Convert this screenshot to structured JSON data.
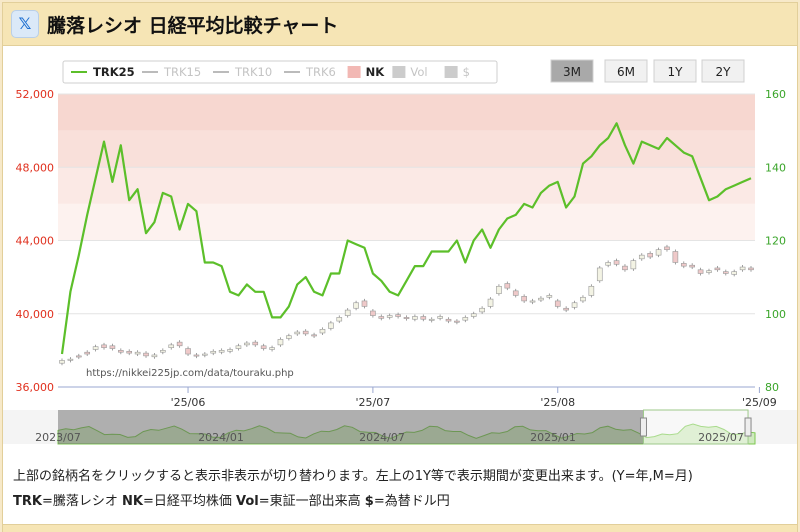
{
  "header": {
    "logo_glyph": "𝕏",
    "title": "騰落レシオ 日経平均比較チャート"
  },
  "range_buttons": [
    {
      "label": "3M",
      "active": true
    },
    {
      "label": "6M",
      "active": false
    },
    {
      "label": "1Y",
      "active": false
    },
    {
      "label": "2Y",
      "active": false
    }
  ],
  "legend": [
    {
      "label": "TRK25",
      "type": "line",
      "color": "#5cbf2a",
      "active": true
    },
    {
      "label": "TRK15",
      "type": "line",
      "color": "#bbbbbb",
      "active": false
    },
    {
      "label": "TRK10",
      "type": "line",
      "color": "#bbbbbb",
      "active": false
    },
    {
      "label": "TRK6",
      "type": "line",
      "color": "#bbbbbb",
      "active": false
    },
    {
      "label": "NK",
      "type": "box",
      "color": "#f2b8b4",
      "active": true
    },
    {
      "label": "Vol",
      "type": "box",
      "color": "#cccccc",
      "active": false
    },
    {
      "label": "$",
      "type": "box",
      "color": "#cccccc",
      "active": false
    }
  ],
  "watermark": "https://nikkei225jp.com/data/touraku.php",
  "description": "上部の銘柄名をクリックすると表示非表示が切り替わります。左上の1Y等で表示期間が変更出来ます。(Y=年,M=月)",
  "legend_text": [
    {
      "key": "TRK",
      "desc": "=騰落レシオ "
    },
    {
      "key": "NK",
      "desc": "=日経平均株価 "
    },
    {
      "key": "Vol",
      "desc": "=東証一部出来高 "
    },
    {
      "key": "$",
      "desc": "=為替ドル円"
    }
  ],
  "colors": {
    "trk": "#5cbf2a",
    "left_axis": "#e0301e",
    "right_axis": "#3aa52a",
    "bull": "#f3f3e4",
    "bear": "#efc9c9",
    "nav": "#cfe9bf"
  },
  "chart_data": {
    "type": "line",
    "left_axis": {
      "ticks": [
        "52,000",
        "48,000",
        "44,000",
        "40,000",
        "36,000"
      ],
      "ylim": [
        36000,
        52000
      ]
    },
    "right_axis": {
      "ticks": [
        "160",
        "140",
        "120",
        "100",
        "80"
      ],
      "ylim": [
        80,
        160
      ]
    },
    "bands": [
      {
        "from": 150,
        "to": 160,
        "color": "#f7d7d0"
      },
      {
        "from": 140,
        "to": 150,
        "color": "#f9e0da"
      },
      {
        "from": 130,
        "to": 140,
        "color": "#fbe9e5"
      },
      {
        "from": 120,
        "to": 130,
        "color": "#fdf2ef"
      }
    ],
    "x_ticks": [
      "'25/06",
      "'25/07",
      "'25/08",
      "'25/09"
    ],
    "x_tick_index": [
      15,
      37,
      59,
      83
    ],
    "navigator_labels": [
      "2023/07",
      "2024/01",
      "2024/07",
      "2025/01",
      "2025/07"
    ],
    "navigator_selection": [
      0.84,
      0.99
    ],
    "trk25": [
      89,
      106,
      116,
      127,
      137,
      147,
      136,
      146,
      131,
      134,
      122,
      125,
      133,
      132,
      123,
      130,
      128,
      114,
      114,
      113,
      106,
      105,
      108,
      106,
      106,
      99,
      99,
      102,
      108,
      110,
      106,
      105,
      111,
      111,
      120,
      119,
      118,
      111,
      109,
      106,
      105,
      109,
      113,
      113,
      117,
      117,
      117,
      120,
      114,
      120,
      123,
      118,
      123,
      126,
      127,
      130,
      129,
      133,
      135,
      136,
      129,
      132,
      141,
      143,
      146,
      148,
      152,
      146,
      141,
      147,
      146,
      145,
      148,
      146,
      144,
      143,
      137,
      131,
      132,
      134,
      135,
      136,
      137
    ],
    "nk": [
      [
        37300,
        37450
      ],
      [
        37500,
        37520
      ],
      [
        37700,
        37650
      ],
      [
        37900,
        37800
      ],
      [
        38050,
        38200
      ],
      [
        38300,
        38150
      ],
      [
        38250,
        38100
      ],
      [
        38000,
        37900
      ],
      [
        37950,
        37850
      ],
      [
        37800,
        37900
      ],
      [
        37850,
        37700
      ],
      [
        37650,
        37750
      ],
      [
        37900,
        38000
      ],
      [
        38150,
        38300
      ],
      [
        38450,
        38250
      ],
      [
        38100,
        37800
      ],
      [
        37750,
        37700
      ],
      [
        37750,
        37800
      ],
      [
        37850,
        37950
      ],
      [
        37900,
        38000
      ],
      [
        37950,
        38050
      ],
      [
        38100,
        38250
      ],
      [
        38300,
        38400
      ],
      [
        38450,
        38300
      ],
      [
        38250,
        38100
      ],
      [
        38050,
        38150
      ],
      [
        38300,
        38600
      ],
      [
        38650,
        38800
      ],
      [
        38900,
        39000
      ],
      [
        39050,
        38900
      ],
      [
        38850,
        38800
      ],
      [
        38950,
        39150
      ],
      [
        39200,
        39500
      ],
      [
        39600,
        39800
      ],
      [
        39900,
        40200
      ],
      [
        40300,
        40600
      ],
      [
        40700,
        40400
      ],
      [
        40150,
        39900
      ],
      [
        39850,
        39750
      ],
      [
        39800,
        39900
      ],
      [
        39950,
        39850
      ],
      [
        39800,
        39750
      ],
      [
        39700,
        39850
      ],
      [
        39850,
        39700
      ],
      [
        39650,
        39700
      ],
      [
        39750,
        39850
      ],
      [
        39700,
        39600
      ],
      [
        39600,
        39550
      ],
      [
        39650,
        39800
      ],
      [
        39850,
        40000
      ],
      [
        40100,
        40300
      ],
      [
        40400,
        40800
      ],
      [
        41100,
        41500
      ],
      [
        41650,
        41400
      ],
      [
        41250,
        41000
      ],
      [
        40950,
        40700
      ],
      [
        40650,
        40700
      ],
      [
        40750,
        40850
      ],
      [
        40900,
        41000
      ],
      [
        40700,
        40400
      ],
      [
        40300,
        40200
      ],
      [
        40350,
        40600
      ],
      [
        40700,
        40900
      ],
      [
        41000,
        41500
      ],
      [
        41800,
        42500
      ],
      [
        42650,
        42800
      ],
      [
        42900,
        42700
      ],
      [
        42600,
        42400
      ],
      [
        42450,
        42900
      ],
      [
        43000,
        43200
      ],
      [
        43300,
        43100
      ],
      [
        43200,
        43500
      ],
      [
        43650,
        43500
      ],
      [
        43400,
        42800
      ],
      [
        42750,
        42600
      ],
      [
        42650,
        42550
      ],
      [
        42400,
        42200
      ],
      [
        42250,
        42350
      ],
      [
        42500,
        42400
      ],
      [
        42300,
        42200
      ],
      [
        42150,
        42300
      ],
      [
        42400,
        42550
      ],
      [
        42500,
        42400
      ]
    ]
  }
}
